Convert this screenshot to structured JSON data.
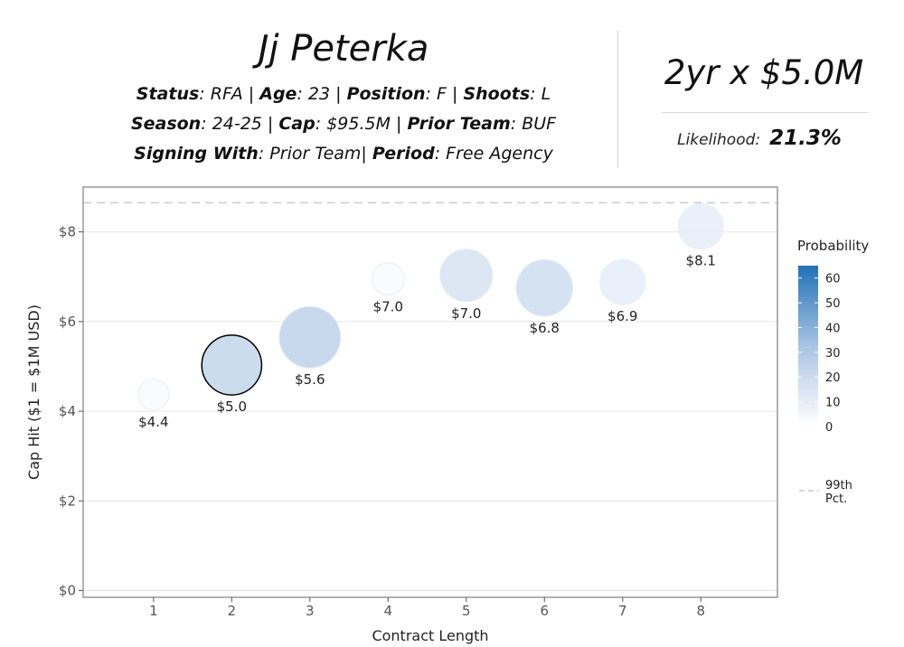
{
  "header": {
    "player_name": "Jj Peterka",
    "status_label": "Status",
    "status": "RFA",
    "age_label": "Age",
    "age": "23",
    "position_label": "Position",
    "position": "F",
    "shoots_label": "Shoots",
    "shoots": "L",
    "season_label": "Season",
    "season": "24-25",
    "cap_label": "Cap",
    "cap": "$95.5M",
    "prior_team_label": "Prior Team",
    "prior_team": "BUF",
    "signing_with_label": "Signing With",
    "signing_with": "Prior Team",
    "period_label": "Period",
    "period": "Free Agency"
  },
  "summary": {
    "contract": "2yr x $5.0M",
    "likelihood_label": "Likelihood:",
    "likelihood_value": "21.3%"
  },
  "chart_data": {
    "type": "scatter",
    "xlabel": "Contract Length",
    "ylabel": "Cap Hit ($1 = $1M USD)",
    "x_ticks": [
      "1",
      "2",
      "3",
      "4",
      "5",
      "6",
      "7",
      "8"
    ],
    "y_ticks": [
      "$0",
      "$2",
      "$4",
      "$6",
      "$8"
    ],
    "xlim": [
      0.1,
      8.98
    ],
    "ylim": [
      -0.15,
      9.0
    ],
    "grid": true,
    "reference_line": {
      "y": 8.65,
      "label": "99th Pct."
    },
    "points": [
      {
        "x": 1,
        "y": 4.37,
        "label": "$4.4",
        "probability": 2.0
      },
      {
        "x": 2,
        "y": 5.03,
        "label": "$5.0",
        "probability": 21.3,
        "highlighted": true
      },
      {
        "x": 3,
        "y": 5.65,
        "label": "$5.6",
        "probability": 23.0
      },
      {
        "x": 4,
        "y": 6.95,
        "label": "$7.0",
        "probability": 2.5
      },
      {
        "x": 5,
        "y": 7.03,
        "label": "$7.0",
        "probability": 14.5
      },
      {
        "x": 6,
        "y": 6.75,
        "label": "$6.8",
        "probability": 18.0
      },
      {
        "x": 7,
        "y": 6.88,
        "label": "$6.9",
        "probability": 9.0
      },
      {
        "x": 8,
        "y": 8.12,
        "label": "$8.1",
        "probability": 9.0
      }
    ],
    "legend": {
      "title": "Probability",
      "scale_ticks": [
        "0",
        "10",
        "20",
        "30",
        "40",
        "50",
        "60"
      ],
      "scale_max": 65,
      "color_low": "#ffffff",
      "color_high": "#2171b5",
      "position": "right"
    },
    "colors": {
      "highlight_stroke": "#000000",
      "reference_line": "#cccccc",
      "grid": "#e6e6e6",
      "panel_border": "#999999"
    }
  }
}
